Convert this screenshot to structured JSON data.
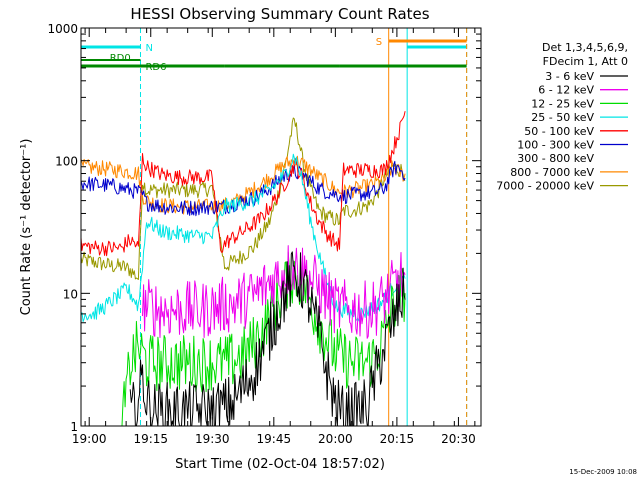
{
  "chart_data": {
    "type": "line",
    "title": "HESSI Observing Summary Count Rates",
    "xlabel": "Start Time (02-Oct-04 18:57:02)",
    "ylabel": "Count Rate (s⁻¹ detector⁻¹)",
    "yscale": "log",
    "ylim": [
      1,
      1000
    ],
    "xlim": [
      -2,
      95.5
    ],
    "x_unit": "minutes after 18:59:00",
    "y_ticks": [
      "1",
      "10",
      "100",
      "1000"
    ],
    "x_ticks": [
      {
        "t": 0,
        "label": "19:00"
      },
      {
        "t": 15,
        "label": "19:15"
      },
      {
        "t": 30,
        "label": "19:30"
      },
      {
        "t": 45,
        "label": "19:45"
      },
      {
        "t": 60,
        "label": "20:00"
      },
      {
        "t": 75,
        "label": "20:15"
      },
      {
        "t": 90,
        "label": "20:30"
      }
    ],
    "legend_header": [
      "Det 1,3,4,5,6,9,",
      "FDecim 1, Att 0"
    ],
    "timestamp": "15-Dec-2009 10:08",
    "annotations": {
      "night": "N",
      "saa": "S",
      "rd0": "RD0",
      "rd6": "RD6"
    },
    "intervals": {
      "night": {
        "color": "#00e5e5",
        "segments": [
          [
            -2,
            12.5
          ],
          [
            77.5,
            92
          ]
        ],
        "bound_lines": [
          -2,
          12.5,
          77.5,
          92
        ]
      },
      "saa": {
        "color": "#ff8800",
        "segments": [
          [
            73,
            92
          ]
        ],
        "bound_lines": [
          73,
          92
        ]
      },
      "rd0": {
        "color": "#008800",
        "segments": [
          [
            -2,
            12.5
          ]
        ]
      },
      "rd6": {
        "color": "#008800",
        "segments": [
          [
            -2,
            12.5
          ],
          [
            12.5,
            33
          ],
          [
            33,
            61
          ],
          [
            61,
            92
          ]
        ]
      }
    },
    "series": [
      {
        "name": "3 - 6 keV",
        "color": "#000000",
        "x": [
          10,
          12,
          13,
          14,
          16,
          20,
          25,
          30,
          35,
          40,
          44,
          47,
          49,
          50,
          52,
          54,
          56,
          58,
          60,
          62,
          64,
          66,
          68,
          70,
          72,
          74,
          76,
          77
        ],
        "y": [
          1.2,
          1.5,
          2.5,
          1.5,
          1.3,
          1.3,
          1.3,
          1.3,
          1.5,
          2.5,
          5,
          9,
          12,
          14,
          12,
          8,
          5,
          2.5,
          1.5,
          1.2,
          1.3,
          1.3,
          1.5,
          2.5,
          4,
          6,
          9,
          10
        ]
      },
      {
        "name": "6 - 12 keV",
        "color": "#ee00ee",
        "x": [
          13,
          18,
          22,
          28,
          32,
          36,
          40,
          44,
          48,
          50,
          52,
          56,
          60,
          64,
          68,
          70,
          72,
          74,
          76,
          77
        ],
        "y": [
          8,
          7.5,
          7.5,
          7.5,
          8,
          8.5,
          9.5,
          12,
          15,
          16,
          15,
          11,
          8,
          7.5,
          7.5,
          8,
          9,
          11,
          13,
          12
        ]
      },
      {
        "name": "12 - 25 keV",
        "color": "#00dd00",
        "x": [
          8,
          10,
          12,
          14,
          18,
          22,
          26,
          30,
          34,
          38,
          42,
          46,
          48,
          50,
          52,
          56,
          60,
          64,
          68,
          70,
          72,
          74,
          76,
          77
        ],
        "y": [
          1,
          3,
          4,
          3,
          3,
          3,
          3,
          3,
          3,
          3.5,
          5,
          9,
          12,
          14,
          12,
          6,
          3.5,
          3,
          3,
          3.5,
          5,
          8,
          10,
          10
        ]
      },
      {
        "name": "25 - 50 keV",
        "color": "#00e5e5",
        "x": [
          -2,
          1,
          4,
          6,
          8,
          9,
          10,
          11,
          12,
          14,
          18,
          22,
          26,
          30,
          33,
          36,
          40,
          44,
          46,
          48,
          49,
          50,
          51,
          52,
          54,
          56,
          58,
          60,
          62,
          64,
          66,
          68,
          70,
          72,
          74,
          76,
          77
        ],
        "y": [
          7,
          7,
          8,
          9,
          10,
          11,
          10,
          9,
          8,
          35,
          29,
          28,
          27,
          27,
          45,
          47,
          50,
          60,
          70,
          80,
          95,
          110,
          90,
          70,
          35,
          20,
          12,
          8,
          7.5,
          7,
          7,
          7.5,
          8,
          9,
          11,
          13,
          12
        ]
      },
      {
        "name": "50 - 100 keV",
        "color": "#ff0000",
        "x": [
          -2,
          2,
          6,
          8,
          9,
          10,
          11,
          12,
          13,
          14,
          18,
          22,
          26,
          30,
          32,
          34,
          38,
          42,
          44,
          46,
          48,
          50,
          52,
          54,
          56,
          58,
          60,
          61,
          62,
          64,
          66,
          68,
          70,
          72,
          74,
          75,
          76,
          77
        ],
        "y": [
          23,
          22,
          22,
          22,
          24,
          25,
          24,
          22,
          105,
          90,
          78,
          75,
          75,
          75,
          22,
          25,
          30,
          37,
          45,
          55,
          70,
          95,
          75,
          48,
          35,
          28,
          24,
          23,
          85,
          85,
          85,
          85,
          85,
          85,
          120,
          150,
          180,
          240
        ]
      },
      {
        "name": "100 - 300 keV",
        "color": "#0000cc",
        "x": [
          -2,
          2,
          5,
          8,
          10,
          12,
          13,
          14,
          18,
          22,
          26,
          30,
          33,
          36,
          40,
          44,
          46,
          48,
          50,
          52,
          54,
          56,
          58,
          60,
          61,
          62,
          64,
          66,
          68,
          70,
          72,
          74,
          75,
          76,
          77
        ],
        "y": [
          68,
          66,
          65,
          62,
          60,
          58,
          55,
          48,
          45,
          44,
          44,
          45,
          45,
          48,
          52,
          62,
          70,
          78,
          82,
          78,
          70,
          62,
          58,
          56,
          55,
          54,
          55,
          56,
          57,
          58,
          62,
          85,
          90,
          85,
          80
        ]
      },
      {
        "name": "300 - 800 keV",
        "color": "#ffffff",
        "x": [],
        "y": []
      },
      {
        "name": "800 - 7000 keV",
        "color": "#ff8800",
        "x": [
          -2,
          2,
          5,
          8,
          10,
          12,
          13,
          14,
          18,
          22,
          26,
          30,
          33,
          36,
          40,
          44,
          46,
          48,
          50,
          52,
          54,
          56,
          58,
          60,
          61,
          62,
          64,
          66,
          68,
          70,
          72,
          74,
          75,
          76,
          77
        ],
        "y": [
          90,
          88,
          86,
          84,
          82,
          80,
          55,
          50,
          46,
          45,
          45,
          45,
          46,
          50,
          60,
          75,
          85,
          95,
          100,
          95,
          85,
          75,
          68,
          60,
          58,
          58,
          60,
          62,
          64,
          68,
          72,
          90,
          85,
          80,
          78
        ]
      },
      {
        "name": "7000 - 20000 keV",
        "color": "#999900",
        "x": [
          -2,
          2,
          6,
          8,
          10,
          11,
          12,
          13,
          14,
          18,
          22,
          26,
          30,
          33,
          36,
          40,
          44,
          46,
          48,
          49,
          50,
          51,
          52,
          54,
          56,
          58,
          60,
          61,
          62,
          64,
          66,
          68,
          70,
          72,
          74,
          76,
          77
        ],
        "y": [
          18,
          17,
          16,
          16,
          15,
          14,
          13,
          70,
          60,
          60,
          60,
          60,
          62,
          16,
          18,
          22,
          35,
          55,
          100,
          150,
          200,
          150,
          100,
          60,
          42,
          38,
          36,
          35,
          42,
          42,
          44,
          46,
          55,
          75,
          90,
          85,
          80
        ]
      }
    ]
  }
}
